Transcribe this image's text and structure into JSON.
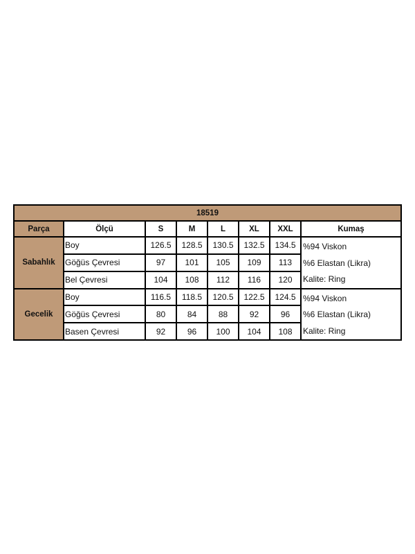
{
  "title": "18519",
  "headers": [
    "Parça",
    "Ölçü",
    "S",
    "M",
    "L",
    "XL",
    "XXL",
    "Kumaş"
  ],
  "groups": [
    {
      "part": "Sabahlık",
      "rows": [
        {
          "measure": "Boy",
          "values": [
            "126.5",
            "128.5",
            "130.5",
            "132.5",
            "134.5"
          ]
        },
        {
          "measure": "Göğüs Çevresi",
          "values": [
            "97",
            "101",
            "105",
            "109",
            "113"
          ]
        },
        {
          "measure": "Bel Çevresi",
          "values": [
            "104",
            "108",
            "112",
            "116",
            "120"
          ]
        }
      ],
      "fabric": [
        "%94 Viskon",
        "%6 Elastan (Likra)",
        "Kalite: Ring"
      ]
    },
    {
      "part": "Gecelik",
      "rows": [
        {
          "measure": "Boy",
          "values": [
            "116.5",
            "118.5",
            "120.5",
            "122.5",
            "124.5"
          ]
        },
        {
          "measure": "Göğüs Çevresi",
          "values": [
            "80",
            "84",
            "88",
            "92",
            "96"
          ]
        },
        {
          "measure": "Basen Çevresi",
          "values": [
            "92",
            "96",
            "100",
            "104",
            "108"
          ]
        }
      ],
      "fabric": [
        "%94 Viskon",
        "%6 Elastan (Likra)",
        "Kalite: Ring"
      ]
    }
  ],
  "colors": {
    "header_bg": "#BF9A78",
    "border": "#000000"
  }
}
